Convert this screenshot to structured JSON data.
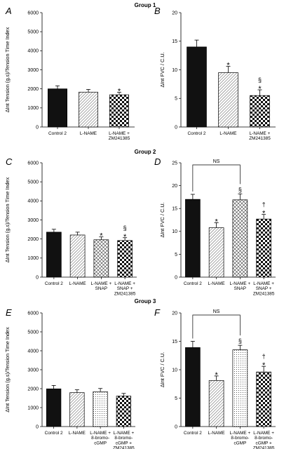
{
  "figure": {
    "groups": [
      "Group 1",
      "Group 2",
      "Group 3"
    ]
  },
  "chart_data": [
    {
      "panel": "A",
      "type": "bar",
      "group": "Group 1",
      "ylabel": "ΔInt Tension (g.s)/Tension Time Index",
      "ylim": [
        0,
        6000
      ],
      "yticks": [
        0,
        1000,
        2000,
        3000,
        4000,
        5000,
        6000
      ],
      "categories": [
        [
          "Control 2"
        ],
        [
          "L-NAME"
        ],
        [
          "L-NAME +",
          "ZM241385"
        ]
      ],
      "values": [
        2000,
        1830,
        1690
      ],
      "errors": [
        160,
        140,
        130
      ],
      "fills": [
        "solid",
        "diag",
        "check"
      ],
      "marks": [
        "",
        "",
        "*"
      ],
      "bracket": null
    },
    {
      "panel": "B",
      "type": "bar",
      "group": "Group 1",
      "ylabel": "ΔInt FVC / C.U.",
      "ylim": [
        0,
        20
      ],
      "yticks": [
        0,
        5,
        10,
        15,
        20
      ],
      "categories": [
        [
          "Control 2"
        ],
        [
          "L-NAME"
        ],
        [
          "L-NAME +",
          "ZM241385"
        ]
      ],
      "values": [
        14,
        9.5,
        5.5
      ],
      "errors": [
        1.2,
        1.1,
        1.0
      ],
      "fills": [
        "solid",
        "diag",
        "check"
      ],
      "marks": [
        "",
        "*",
        "§|*"
      ],
      "bracket": null
    },
    {
      "panel": "C",
      "type": "bar",
      "group": "Group 2",
      "ylabel": "ΔInt Tension (g.s)/Tension Time Index",
      "ylim": [
        0,
        6000
      ],
      "yticks": [
        0,
        1000,
        2000,
        3000,
        4000,
        5000,
        6000
      ],
      "categories": [
        [
          "Control 2"
        ],
        [
          "L-NAME"
        ],
        [
          "L-NAME +",
          "SNAP"
        ],
        [
          "L-NAME +",
          "SNAP +",
          "ZM241385"
        ]
      ],
      "values": [
        2360,
        2210,
        1960,
        1920
      ],
      "errors": [
        150,
        150,
        150,
        150
      ],
      "fills": [
        "solid",
        "diag",
        "cross",
        "check"
      ],
      "marks": [
        "",
        "",
        "*",
        "§|*"
      ],
      "bracket": null
    },
    {
      "panel": "D",
      "type": "bar",
      "group": "Group 2",
      "ylabel": "ΔInt FVC / C.U.",
      "ylim": [
        0,
        25
      ],
      "yticks": [
        0,
        5,
        10,
        15,
        20,
        25
      ],
      "categories": [
        [
          "Control 2"
        ],
        [
          "L-NAME"
        ],
        [
          "L-NAME +",
          "SNAP"
        ],
        [
          "L-NAME +",
          "SNAP +",
          "ZM241385"
        ]
      ],
      "values": [
        17,
        10.8,
        16.9,
        12.7
      ],
      "errors": [
        1.1,
        1.1,
        1.3,
        1.0
      ],
      "fills": [
        "solid",
        "diag",
        "cross",
        "check"
      ],
      "marks": [
        "",
        "*",
        "§",
        "†|*"
      ],
      "bracket": {
        "from": 0,
        "to": 2,
        "label": "NS"
      }
    },
    {
      "panel": "E",
      "type": "bar",
      "group": "Group 3",
      "ylabel": "ΔInt Tension (g.s)/Tension Time Index",
      "ylim": [
        0,
        6000
      ],
      "yticks": [
        0,
        1000,
        2000,
        3000,
        4000,
        5000,
        6000
      ],
      "categories": [
        [
          "Control 2"
        ],
        [
          "L-NAME"
        ],
        [
          "L-NAME +",
          "8-bromo-",
          "cGMP"
        ],
        [
          "L-NAME +",
          "8-bromo-",
          "cGMP +",
          "ZM241385"
        ]
      ],
      "values": [
        1990,
        1790,
        1840,
        1610
      ],
      "errors": [
        180,
        150,
        170,
        140
      ],
      "fills": [
        "solid",
        "diag",
        "dots",
        "check"
      ],
      "marks": [
        "",
        "",
        "",
        ""
      ],
      "bracket": null
    },
    {
      "panel": "F",
      "type": "bar",
      "group": "Group 3",
      "ylabel": "ΔInt FVC / C.U.",
      "ylim": [
        0,
        20
      ],
      "yticks": [
        0,
        5,
        10,
        15,
        20
      ],
      "categories": [
        [
          "Control 2"
        ],
        [
          "L-NAME"
        ],
        [
          "L-NAME +",
          "8-bromo-",
          "cGMP"
        ],
        [
          "L-NAME +",
          "8-bromo-",
          "cGMP +",
          "ZM241385"
        ]
      ],
      "values": [
        13.9,
        8.1,
        13.5,
        9.6
      ],
      "errors": [
        1.1,
        0.8,
        0.8,
        1.0
      ],
      "fills": [
        "solid",
        "diag",
        "dots",
        "check"
      ],
      "marks": [
        "",
        "*",
        "§",
        "†|*"
      ],
      "bracket": {
        "from": 0,
        "to": 2,
        "label": "NS"
      }
    }
  ]
}
